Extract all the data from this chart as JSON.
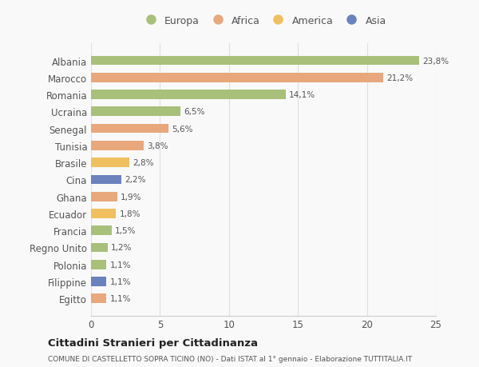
{
  "countries": [
    "Albania",
    "Marocco",
    "Romania",
    "Ucraina",
    "Senegal",
    "Tunisia",
    "Brasile",
    "Cina",
    "Ghana",
    "Ecuador",
    "Francia",
    "Regno Unito",
    "Polonia",
    "Filippine",
    "Egitto"
  ],
  "values": [
    23.8,
    21.2,
    14.1,
    6.5,
    5.6,
    3.8,
    2.8,
    2.2,
    1.9,
    1.8,
    1.5,
    1.2,
    1.1,
    1.1,
    1.1
  ],
  "labels": [
    "23,8%",
    "21,2%",
    "14,1%",
    "6,5%",
    "5,6%",
    "3,8%",
    "2,8%",
    "2,2%",
    "1,9%",
    "1,8%",
    "1,5%",
    "1,2%",
    "1,1%",
    "1,1%",
    "1,1%"
  ],
  "colors": [
    "#a8c07a",
    "#e8a87c",
    "#a8c07a",
    "#a8c07a",
    "#e8a87c",
    "#e8a87c",
    "#f0c060",
    "#6b82be",
    "#e8a87c",
    "#f0c060",
    "#a8c07a",
    "#a8c07a",
    "#a8c07a",
    "#6b82be",
    "#e8a87c"
  ],
  "legend_labels": [
    "Europa",
    "Africa",
    "America",
    "Asia"
  ],
  "legend_colors": [
    "#a8c07a",
    "#e8a87c",
    "#f0c060",
    "#6b82be"
  ],
  "xlim": [
    0,
    25
  ],
  "xticks": [
    0,
    5,
    10,
    15,
    20,
    25
  ],
  "title": "Cittadini Stranieri per Cittadinanza",
  "subtitle": "COMUNE DI CASTELLETTO SOPRA TICINO (NO) - Dati ISTAT al 1° gennaio - Elaborazione TUTTITALIA.IT",
  "background_color": "#f9f9f9",
  "grid_color": "#e0e0e0",
  "bar_height": 0.55
}
